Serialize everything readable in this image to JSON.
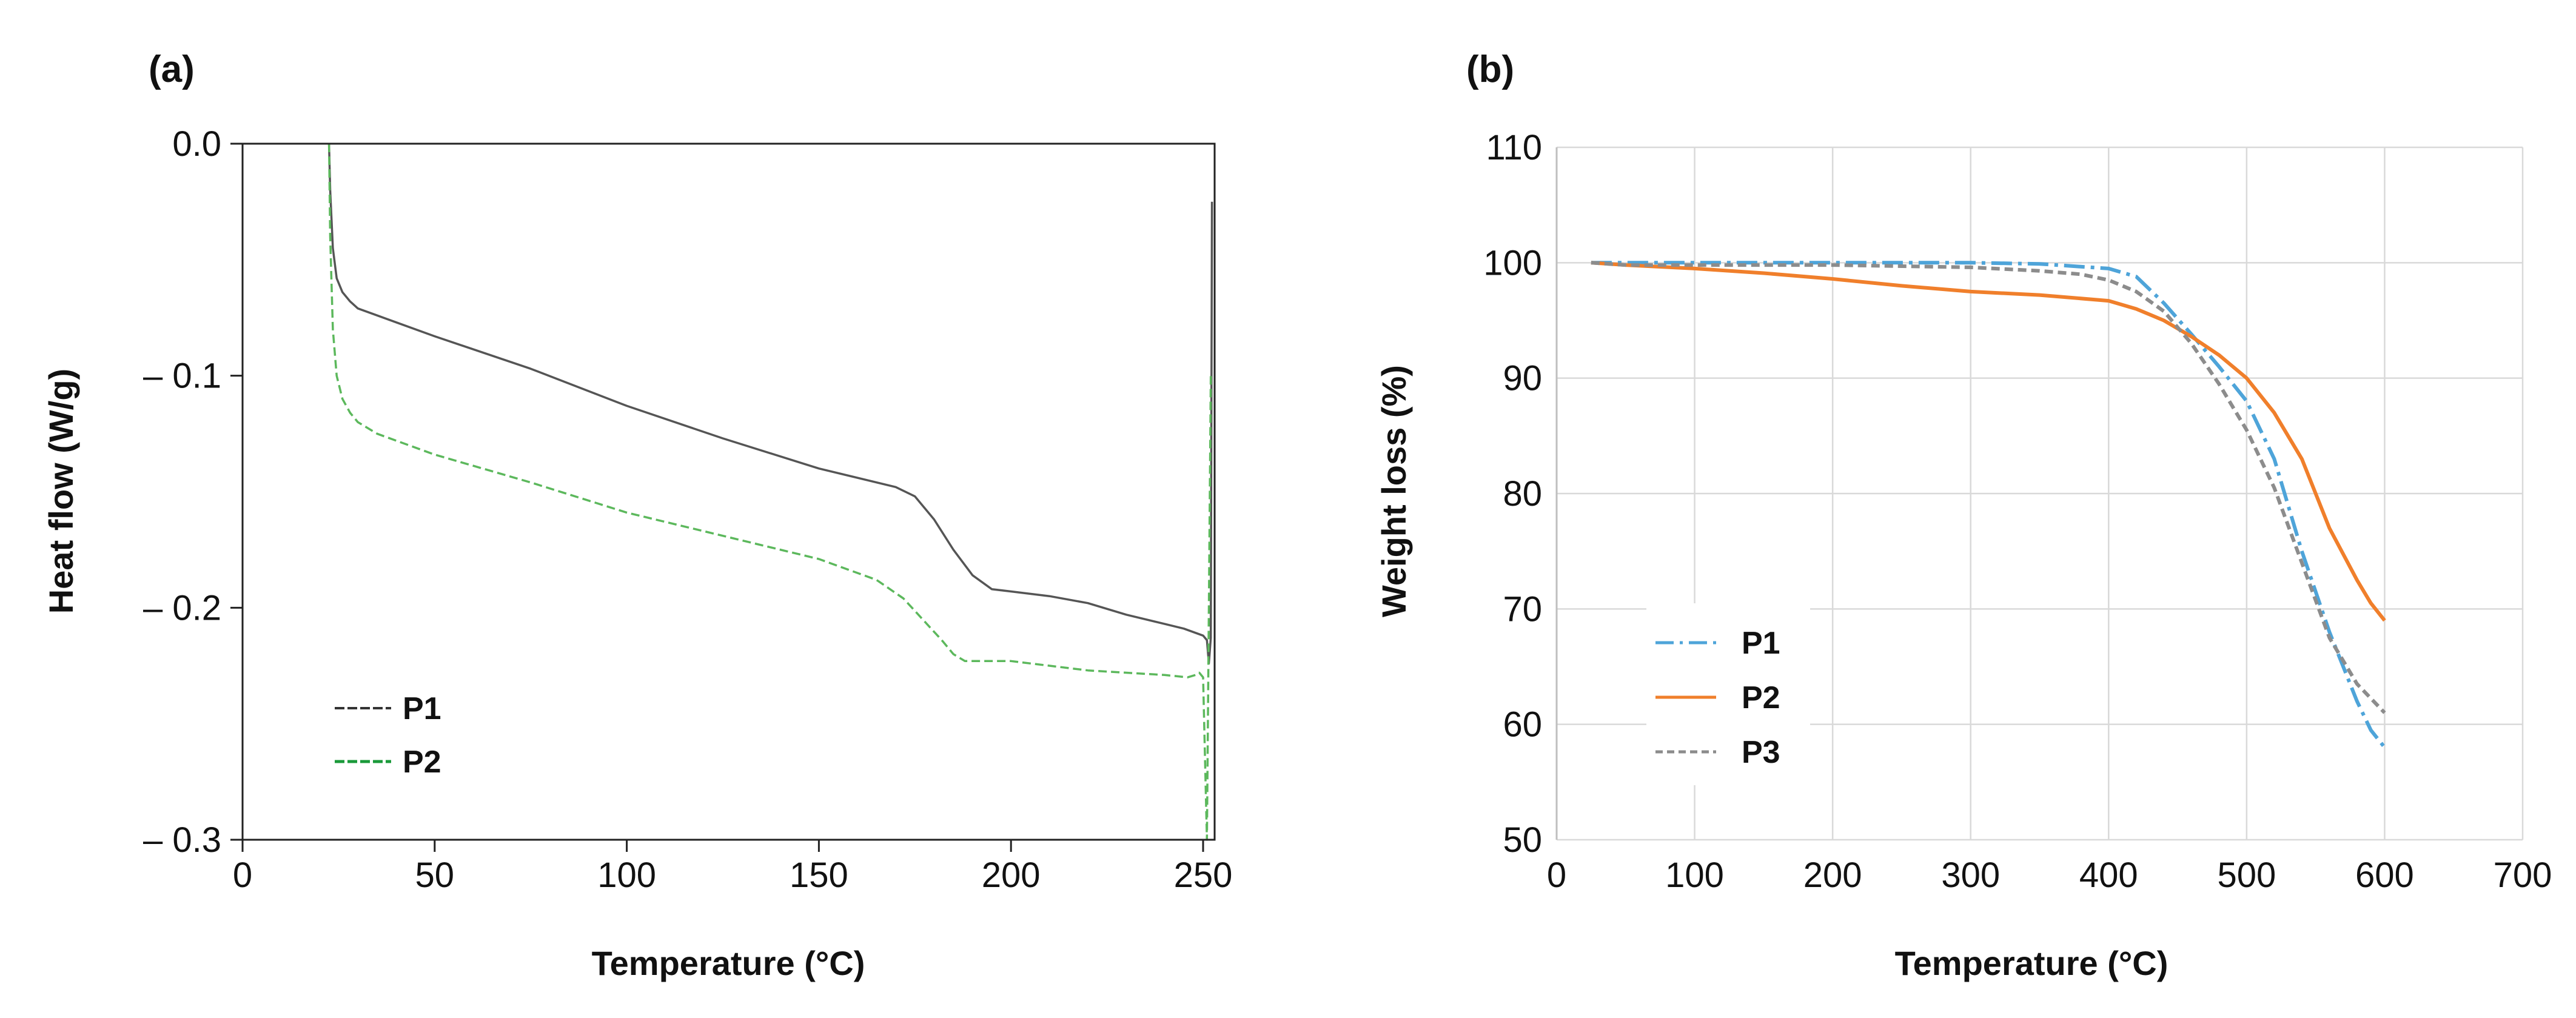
{
  "chart_data": [
    {
      "panel_label": "(a)",
      "type": "line",
      "xlabel": "Temperature (°C)",
      "ylabel": "Heat flow (W/g)",
      "xlim": [
        0,
        253
      ],
      "ylim": [
        -0.3,
        0
      ],
      "x_ticks": [
        0,
        50,
        100,
        150,
        200,
        250
      ],
      "x_tick_labels": [
        "0",
        "50",
        "100",
        "150",
        "200",
        "250"
      ],
      "y_ticks": [
        0,
        -0.1,
        -0.2,
        -0.3
      ],
      "y_tick_labels": [
        "0.0",
        "– 0.1",
        "– 0.2",
        "– 0.3"
      ],
      "grid": false,
      "legend_position": "lower-left",
      "series": [
        {
          "name": "P1",
          "color": "#555555",
          "style": "solid",
          "x": [
            22.5,
            22.8,
            23.5,
            24.5,
            26,
            28,
            30,
            35,
            40,
            50,
            75,
            100,
            125,
            150,
            170,
            175,
            180,
            185,
            190,
            195,
            200,
            205,
            210,
            220,
            230,
            240,
            245,
            250,
            251,
            251.5,
            252,
            252.3
          ],
          "y": [
            0,
            -0.02,
            -0.045,
            -0.058,
            -0.064,
            -0.068,
            -0.071,
            -0.074,
            -0.077,
            -0.083,
            -0.097,
            -0.113,
            -0.127,
            -0.14,
            -0.148,
            -0.152,
            -0.162,
            -0.175,
            -0.186,
            -0.192,
            -0.193,
            -0.194,
            -0.195,
            -0.198,
            -0.203,
            -0.207,
            -0.209,
            -0.212,
            -0.214,
            -0.224,
            -0.213,
            -0.025
          ]
        },
        {
          "name": "P2",
          "color": "#5cb85c",
          "style": "dashed",
          "x": [
            22.5,
            22.8,
            23.5,
            24.5,
            26,
            28,
            30,
            35,
            40,
            50,
            75,
            100,
            125,
            150,
            165,
            172,
            177,
            182,
            185,
            188,
            190,
            195,
            200,
            205,
            210,
            220,
            230,
            240,
            246,
            248,
            249,
            250,
            251,
            252
          ],
          "y": [
            0,
            -0.04,
            -0.08,
            -0.1,
            -0.11,
            -0.116,
            -0.12,
            -0.125,
            -0.128,
            -0.134,
            -0.146,
            -0.159,
            -0.169,
            -0.179,
            -0.188,
            -0.196,
            -0.205,
            -0.214,
            -0.22,
            -0.223,
            -0.223,
            -0.223,
            -0.223,
            -0.224,
            -0.225,
            -0.227,
            -0.228,
            -0.229,
            -0.23,
            -0.229,
            -0.228,
            -0.23,
            -0.3,
            -0.1
          ]
        }
      ]
    },
    {
      "panel_label": "(b)",
      "type": "line",
      "xlabel": "Temperature (°C)",
      "ylabel": "Weight loss (%)",
      "xlim": [
        0,
        700
      ],
      "ylim": [
        50,
        110
      ],
      "x_ticks": [
        0,
        100,
        200,
        300,
        400,
        500,
        600,
        700
      ],
      "x_tick_labels": [
        "0",
        "100",
        "200",
        "300",
        "400",
        "500",
        "600",
        "700"
      ],
      "y_ticks": [
        50,
        60,
        70,
        80,
        90,
        100,
        110
      ],
      "y_tick_labels": [
        "50",
        "60",
        "70",
        "80",
        "90",
        "100",
        "110"
      ],
      "grid": true,
      "legend_position": "lower-left",
      "series": [
        {
          "name": "P1",
          "color": "#4ea4d9",
          "style": "dash-dot",
          "x": [
            25,
            50,
            100,
            200,
            300,
            350,
            400,
            420,
            440,
            460,
            480,
            500,
            520,
            540,
            560,
            580,
            590,
            600
          ],
          "y": [
            100,
            100,
            100,
            100,
            100,
            99.9,
            99.5,
            98.8,
            96.5,
            93.8,
            91,
            88,
            83,
            75,
            68,
            62,
            59.5,
            58
          ]
        },
        {
          "name": "P2",
          "color": "#f07f2b",
          "style": "solid",
          "x": [
            25,
            50,
            100,
            150,
            200,
            250,
            300,
            350,
            400,
            420,
            440,
            460,
            480,
            500,
            520,
            540,
            560,
            580,
            590,
            600
          ],
          "y": [
            100,
            99.8,
            99.5,
            99.1,
            98.6,
            98.0,
            97.5,
            97.2,
            96.7,
            96.0,
            95.0,
            93.6,
            92.0,
            90.0,
            87.0,
            83.0,
            77.0,
            72.5,
            70.5,
            69
          ]
        },
        {
          "name": "P3",
          "color": "#8c8c8c",
          "style": "dashed",
          "x": [
            25,
            50,
            100,
            200,
            300,
            350,
            380,
            400,
            420,
            440,
            460,
            480,
            500,
            520,
            540,
            560,
            580,
            600
          ],
          "y": [
            100,
            99.8,
            99.8,
            99.8,
            99.6,
            99.3,
            99.0,
            98.5,
            97.5,
            95.8,
            93.0,
            89.5,
            85.5,
            80.5,
            74,
            67.5,
            63.5,
            61
          ]
        }
      ]
    }
  ]
}
